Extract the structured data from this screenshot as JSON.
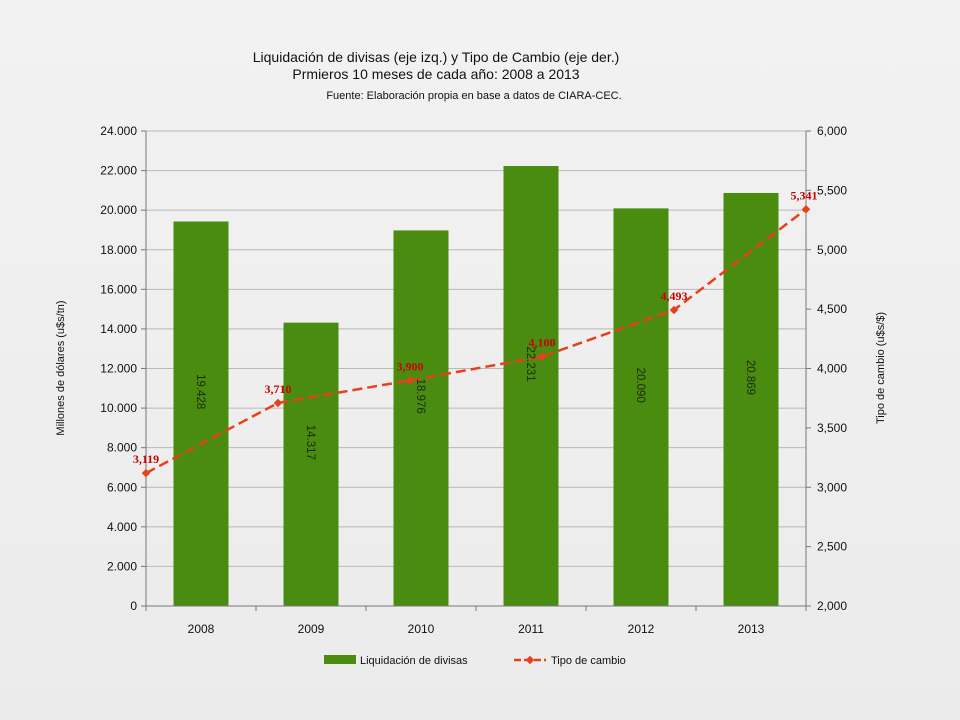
{
  "chart_data": {
    "type": "bar",
    "title": "Liquidación de divisas (eje izq.) y Tipo de Cambio (eje der.)",
    "subtitle": "Prmieros 10 meses de cada año: 2008 a 2013",
    "source": "Fuente: Elaboración propia en base a datos de CIARA-CEC.",
    "categories": [
      "2008",
      "2009",
      "2010",
      "2011",
      "2012",
      "2013"
    ],
    "ylabel_left": "Millones de dólares (u$s/tn)",
    "ylabel_right": "Tipo de cambio (u$s/$)",
    "ylim_left": [
      0,
      24000
    ],
    "ylim_right": [
      2,
      6
    ],
    "yticks_left": [
      "0",
      "2.000",
      "4.000",
      "6.000",
      "8.000",
      "10.000",
      "12.000",
      "14.000",
      "16.000",
      "18.000",
      "20.000",
      "22.000",
      "24.000"
    ],
    "yticks_right": [
      "2,000",
      "2,500",
      "3,000",
      "3,500",
      "4,000",
      "4,500",
      "5,000",
      "5,500",
      "6,000"
    ],
    "grid": "horizontal",
    "legend_position": "bottom",
    "series": [
      {
        "name": "Liquidación de divisas",
        "type": "bar",
        "axis": "left",
        "color": "#4a8c10",
        "values": [
          19428,
          14317,
          18976,
          22231,
          20090,
          20869
        ],
        "labels": [
          "19.428",
          "14.317",
          "18.976",
          "22.231",
          "20.090",
          "20.869"
        ]
      },
      {
        "name": "Tipo de cambio",
        "type": "line",
        "axis": "right",
        "color": "#e8401c",
        "values": [
          3.119,
          3.71,
          3.9,
          4.1,
          4.493,
          5.341
        ],
        "labels": [
          "3,119",
          "3,710",
          "3,900",
          "4,100",
          "4,493",
          "5,341"
        ]
      }
    ]
  }
}
